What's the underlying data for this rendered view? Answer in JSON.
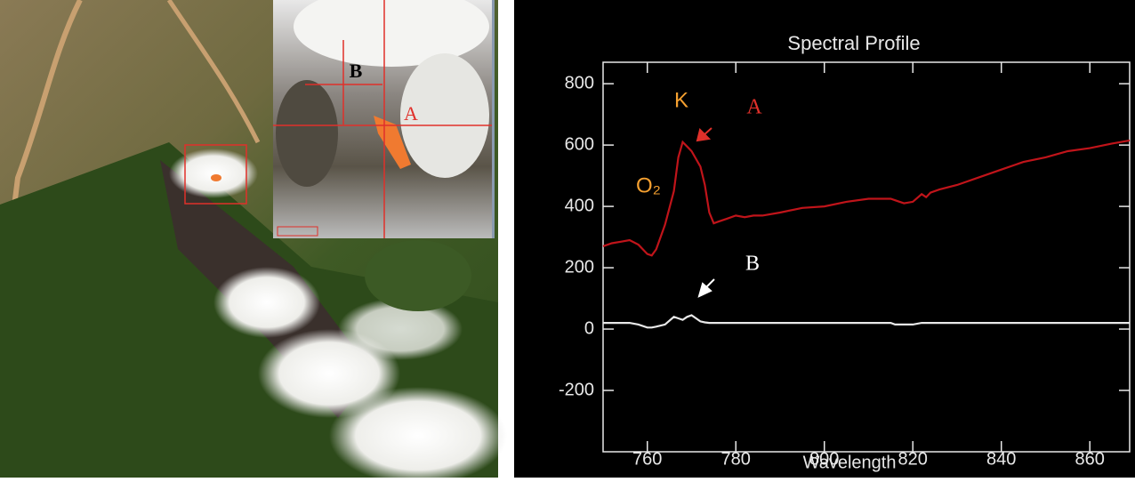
{
  "image_labels": [
    "B",
    "A"
  ],
  "chart_data": {
    "type": "line",
    "title": "Spectral Profile",
    "x_label": "Wavelength",
    "x": [
      750,
      752,
      754,
      756,
      758,
      760,
      761,
      762,
      764,
      766,
      767,
      768,
      769,
      770,
      772,
      773,
      774,
      775,
      776,
      778,
      780,
      782,
      784,
      786,
      790,
      795,
      800,
      805,
      810,
      815,
      816,
      818,
      820,
      822,
      823,
      824,
      826,
      830,
      835,
      840,
      845,
      850,
      855,
      860,
      865,
      869
    ],
    "series": [
      {
        "name": "A",
        "color": "#c0141a",
        "values": [
          270,
          280,
          285,
          290,
          275,
          245,
          240,
          260,
          340,
          450,
          560,
          610,
          595,
          580,
          530,
          470,
          380,
          345,
          350,
          360,
          370,
          365,
          370,
          370,
          380,
          395,
          400,
          415,
          425,
          425,
          420,
          410,
          415,
          440,
          430,
          445,
          455,
          470,
          495,
          520,
          545,
          560,
          580,
          590,
          605,
          615
        ]
      },
      {
        "name": "B",
        "color": "#e8e8e8",
        "values": [
          20,
          20,
          20,
          20,
          15,
          5,
          5,
          8,
          15,
          40,
          35,
          30,
          40,
          45,
          25,
          22,
          20,
          20,
          20,
          20,
          20,
          20,
          20,
          20,
          20,
          20,
          20,
          20,
          20,
          20,
          15,
          15,
          15,
          20,
          20,
          20,
          20,
          20,
          20,
          20,
          20,
          20,
          20,
          20,
          20,
          20
        ]
      }
    ],
    "annotations": [
      "K",
      "O₂",
      "A",
      "B"
    ],
    "xlim": [
      750,
      869
    ],
    "ylim": [
      -400,
      870
    ],
    "xticks": [
      760,
      780,
      800,
      820,
      840,
      860
    ],
    "yticks": [
      -200,
      0,
      200,
      400,
      600,
      800
    ]
  }
}
